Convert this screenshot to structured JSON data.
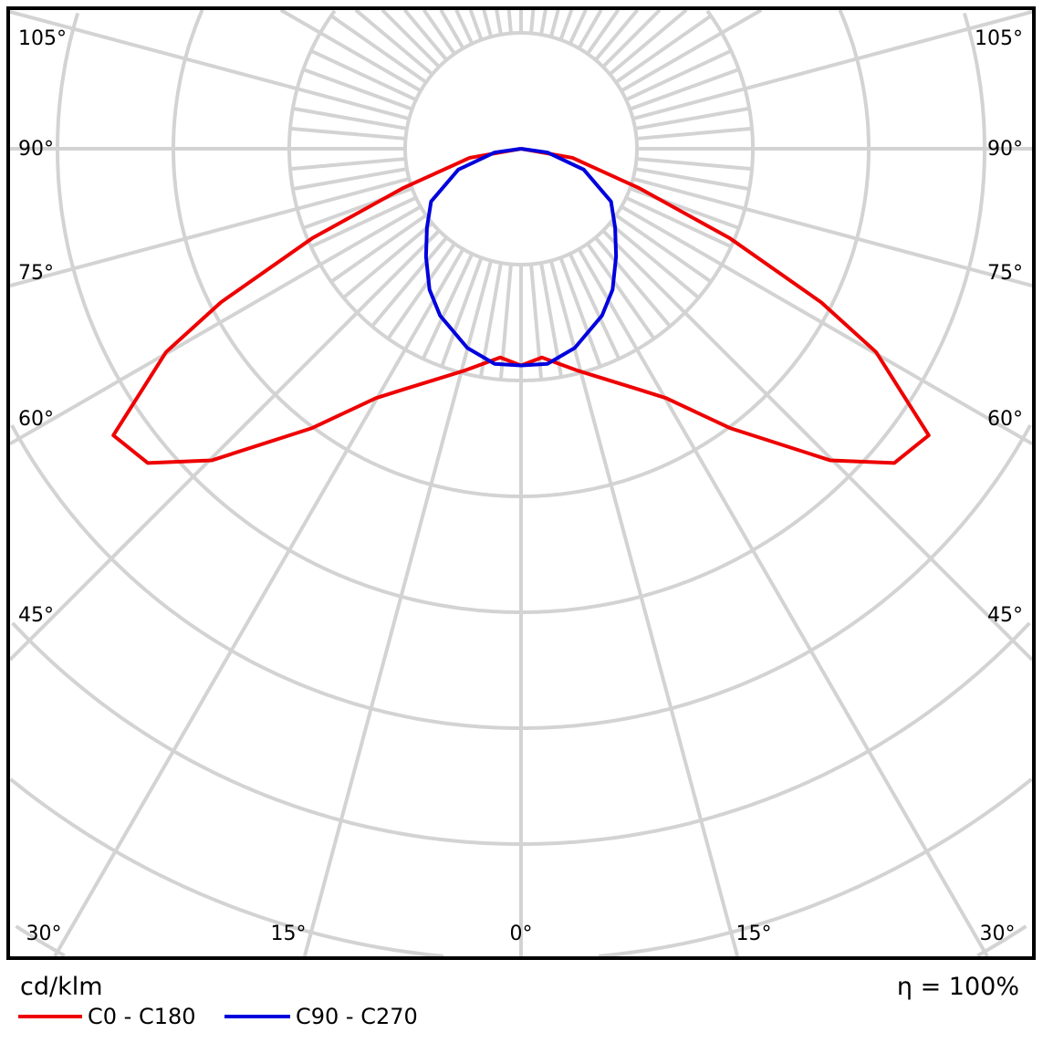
{
  "chart_data": {
    "type": "polar",
    "unit_label": "cd/klm",
    "efficiency_label": "η = 100%",
    "angle_labels_side": [
      "105°",
      "90°",
      "75°",
      "60°",
      "45°",
      "30°"
    ],
    "angle_labels_bottom": [
      "30°",
      "15°",
      "0°",
      "15°",
      "30°"
    ],
    "grid": true,
    "legend_placement": "bottom-left",
    "series": [
      {
        "name": "C0 - C180",
        "color": "#ee0000",
        "gamma": [
          0,
          5.7,
          14.5,
          26,
          30.2,
          36.8,
          44.8,
          49.9,
          54.9,
          60.2,
          62.9,
          66.8,
          71.6,
          80,
          90
        ],
        "intensity": [
          1.87,
          1.81,
          1.98,
          2.31,
          2.49,
          3.01,
          3.79,
          4.21,
          4.3,
          3.53,
          2.91,
          1.96,
          1.07,
          0.45,
          0
        ]
      },
      {
        "name": "C90 - C270",
        "color": "#0000dd",
        "gamma": [
          0,
          7,
          15.1,
          25.9,
          33,
          41.4,
          50,
          59.6,
          71.6,
          82,
          90
        ],
        "intensity": [
          1.87,
          1.87,
          1.78,
          1.6,
          1.45,
          1.24,
          1.06,
          0.9,
          0.57,
          0.23,
          0
        ]
      }
    ]
  }
}
